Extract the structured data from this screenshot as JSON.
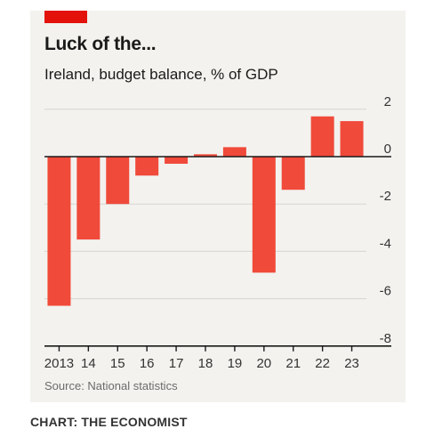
{
  "brand_color": "#e3120b",
  "bar_color": "#f04a3a",
  "credit": "CHART: THE ECONOMIST",
  "chart_data": {
    "type": "bar",
    "title": "Luck of the...",
    "subtitle": "Ireland, budget balance, % of GDP",
    "source": "Source: National statistics",
    "categories": [
      "2013",
      "14",
      "15",
      "16",
      "17",
      "18",
      "19",
      "20",
      "21",
      "22",
      "23"
    ],
    "values": [
      -6.3,
      -3.5,
      -2.0,
      -0.8,
      -0.3,
      0.1,
      0.4,
      -4.9,
      -1.4,
      1.7,
      1.5
    ],
    "yticks": [
      2,
      0,
      -2,
      -4,
      -6,
      -8
    ],
    "ytick_labels": [
      "2",
      "0",
      "-2",
      "-4",
      "-6",
      "-8"
    ],
    "ylim": [
      -8,
      2
    ],
    "y_axis_position": "right",
    "grid": true,
    "xlabel": "",
    "ylabel": ""
  }
}
